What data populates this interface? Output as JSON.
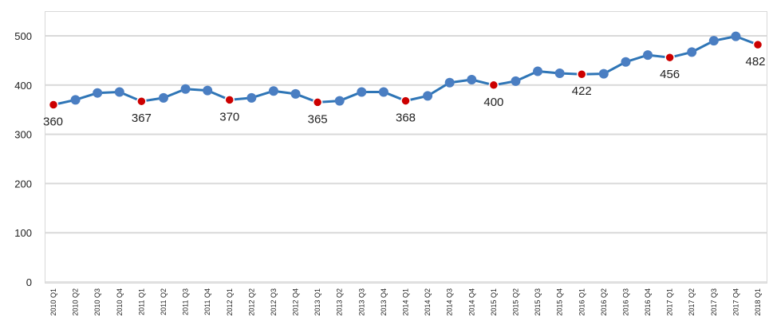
{
  "chart_data": {
    "type": "line",
    "title": "",
    "xlabel": "",
    "ylabel": "",
    "ylim": [
      0,
      500
    ],
    "y_ticks": [
      "0",
      "100",
      "200",
      "300",
      "400",
      "500"
    ],
    "grid": true,
    "legend": "none",
    "categories": [
      "2010 Q1",
      "2010 Q2",
      "2010 Q3",
      "2010 Q4",
      "2011 Q1",
      "2011 Q2",
      "2011 Q3",
      "2011 Q4",
      "2012 Q1",
      "2012 Q2",
      "2012 Q3",
      "2012 Q4",
      "2013 Q1",
      "2013 Q2",
      "2013 Q3",
      "2013 Q4",
      "2014 Q1",
      "2014 Q2",
      "2014 Q3",
      "2014 Q4",
      "2015 Q1",
      "2015 Q2",
      "2015 Q3",
      "2015 Q4",
      "2016 Q1",
      "2016 Q2",
      "2016 Q3",
      "2016 Q4",
      "2017 Q1",
      "2017 Q2",
      "2017 Q3",
      "2017 Q4",
      "2018 Q1"
    ],
    "tick_labels": [
      "2010 Q1",
      "2010 Q2",
      "2010 Q3",
      "2010 Q4",
      "2011 Q1",
      "2011 Q2",
      "2011 Q3",
      "2011 Q4",
      "2012 Q1",
      "2012 Q2",
      "2012 Q3",
      "2012 Q4",
      "2013 Q1",
      "2013 Q2",
      "2013 Q3",
      "2013 Q4",
      "2014 Q1",
      "2014 Q2",
      "2014 Q3",
      "2014 Q4",
      "2015 Q1",
      "2015 Q2",
      "2015 Q3",
      "2015 Q4",
      "2016 Q1",
      "2016 Q2",
      "2016 Q3",
      "2016 Q4",
      "2017 Q1",
      "2017 Q2",
      "2017 Q3",
      "2017 Q4",
      "2018 Q1"
    ],
    "series": [
      {
        "values": [
          360,
          370,
          384,
          386,
          367,
          374,
          392,
          389,
          370,
          374,
          388,
          382,
          365,
          368,
          386,
          386,
          368,
          378,
          405,
          411,
          400,
          408,
          428,
          424,
          422,
          423,
          447,
          461,
          456,
          467,
          490,
          499,
          482
        ],
        "highlight_indices": [
          0,
          4,
          8,
          12,
          16,
          20,
          24,
          28,
          32
        ],
        "data_labels": [
          "360",
          "367",
          "370",
          "365",
          "368",
          "400",
          "422",
          "456",
          "482"
        ]
      }
    ],
    "colors": {
      "line": "#2e75b6",
      "marker": "#4a7ec2",
      "highlight": "#cc0000",
      "grid": "#d9d9d9"
    }
  }
}
